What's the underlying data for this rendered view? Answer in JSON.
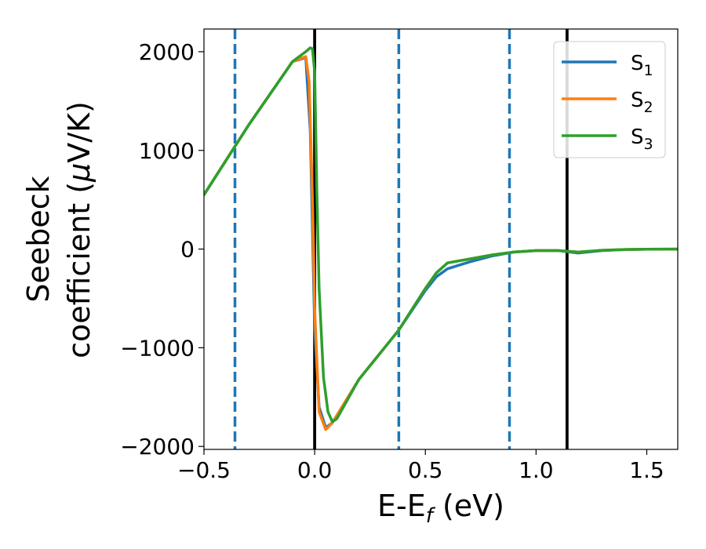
{
  "chart_data": {
    "type": "line",
    "xlabel_main": "E-E",
    "xlabel_sub": "f",
    "xlabel_unit": " (eV)",
    "ylabel_line1": "Seebeck",
    "ylabel_line2_text": "coefficient  (",
    "ylabel_line2_mu": "μ",
    "ylabel_line2_unit": "V/K)",
    "xlim": [
      -0.5,
      1.64
    ],
    "ylim": [
      -2030,
      2230
    ],
    "xticks": [
      -0.5,
      0.0,
      0.5,
      1.0,
      1.5
    ],
    "xtick_labels": [
      "−0.5",
      "0.0",
      "0.5",
      "1.0",
      "1.5"
    ],
    "yticks": [
      -2000,
      -1000,
      0,
      1000,
      2000
    ],
    "ytick_labels": [
      "−2000",
      "−1000",
      "0",
      "1000",
      "2000"
    ],
    "grid": false,
    "legend_position": "top-right",
    "vlines": [
      {
        "x": -0.36,
        "style": "dashed",
        "color": "#1f77b4"
      },
      {
        "x": 0.0,
        "style": "solid",
        "color": "#000000"
      },
      {
        "x": 0.38,
        "style": "dashed",
        "color": "#1f77b4"
      },
      {
        "x": 0.88,
        "style": "dashed",
        "color": "#1f77b4"
      },
      {
        "x": 1.14,
        "style": "solid",
        "color": "#000000"
      }
    ],
    "series": [
      {
        "name_base": "S",
        "name_sub": "1",
        "color": "#1f77b4",
        "x": [
          -0.5,
          -0.3,
          -0.1,
          -0.04,
          -0.02,
          0.0,
          0.02,
          0.05,
          0.08,
          0.2,
          0.38,
          0.5,
          0.55,
          0.6,
          0.7,
          0.8,
          0.9,
          1.0,
          1.1,
          1.19,
          1.3,
          1.4,
          1.5,
          1.64
        ],
        "y": [
          550,
          1250,
          1900,
          1940,
          1200,
          -800,
          -1600,
          -1810,
          -1760,
          -1320,
          -820,
          -420,
          -280,
          -200,
          -130,
          -70,
          -30,
          -15,
          -15,
          -40,
          -15,
          -5,
          -2,
          0
        ]
      },
      {
        "name_base": "S",
        "name_sub": "2",
        "color": "#ff7f0e",
        "x": [
          -0.5,
          -0.3,
          -0.1,
          -0.04,
          -0.025,
          -0.01,
          0.0,
          0.02,
          0.05,
          0.08,
          0.2,
          0.38,
          0.5,
          0.55,
          0.6,
          0.7,
          0.8,
          0.9,
          1.0,
          1.1,
          1.19,
          1.3,
          1.4,
          1.5,
          1.64
        ],
        "y": [
          550,
          1250,
          1900,
          1950,
          1700,
          500,
          -600,
          -1650,
          -1830,
          -1760,
          -1320,
          -820,
          -400,
          -240,
          -140,
          -100,
          -60,
          -30,
          -15,
          -15,
          -30,
          -12,
          -4,
          -2,
          0
        ]
      },
      {
        "name_base": "S",
        "name_sub": "3",
        "color": "#2ca02c",
        "x": [
          -0.5,
          -0.3,
          -0.1,
          -0.04,
          -0.02,
          -0.01,
          0.0,
          0.01,
          0.02,
          0.04,
          0.06,
          0.08,
          0.1,
          0.2,
          0.38,
          0.5,
          0.55,
          0.6,
          0.7,
          0.8,
          0.9,
          1.0,
          1.1,
          1.19,
          1.3,
          1.4,
          1.5,
          1.64
        ],
        "y": [
          550,
          1250,
          1900,
          2000,
          2040,
          2030,
          1800,
          600,
          -400,
          -1300,
          -1650,
          -1750,
          -1720,
          -1320,
          -820,
          -400,
          -240,
          -140,
          -100,
          -60,
          -30,
          -15,
          -15,
          -30,
          -12,
          -4,
          -2,
          0
        ]
      }
    ]
  }
}
